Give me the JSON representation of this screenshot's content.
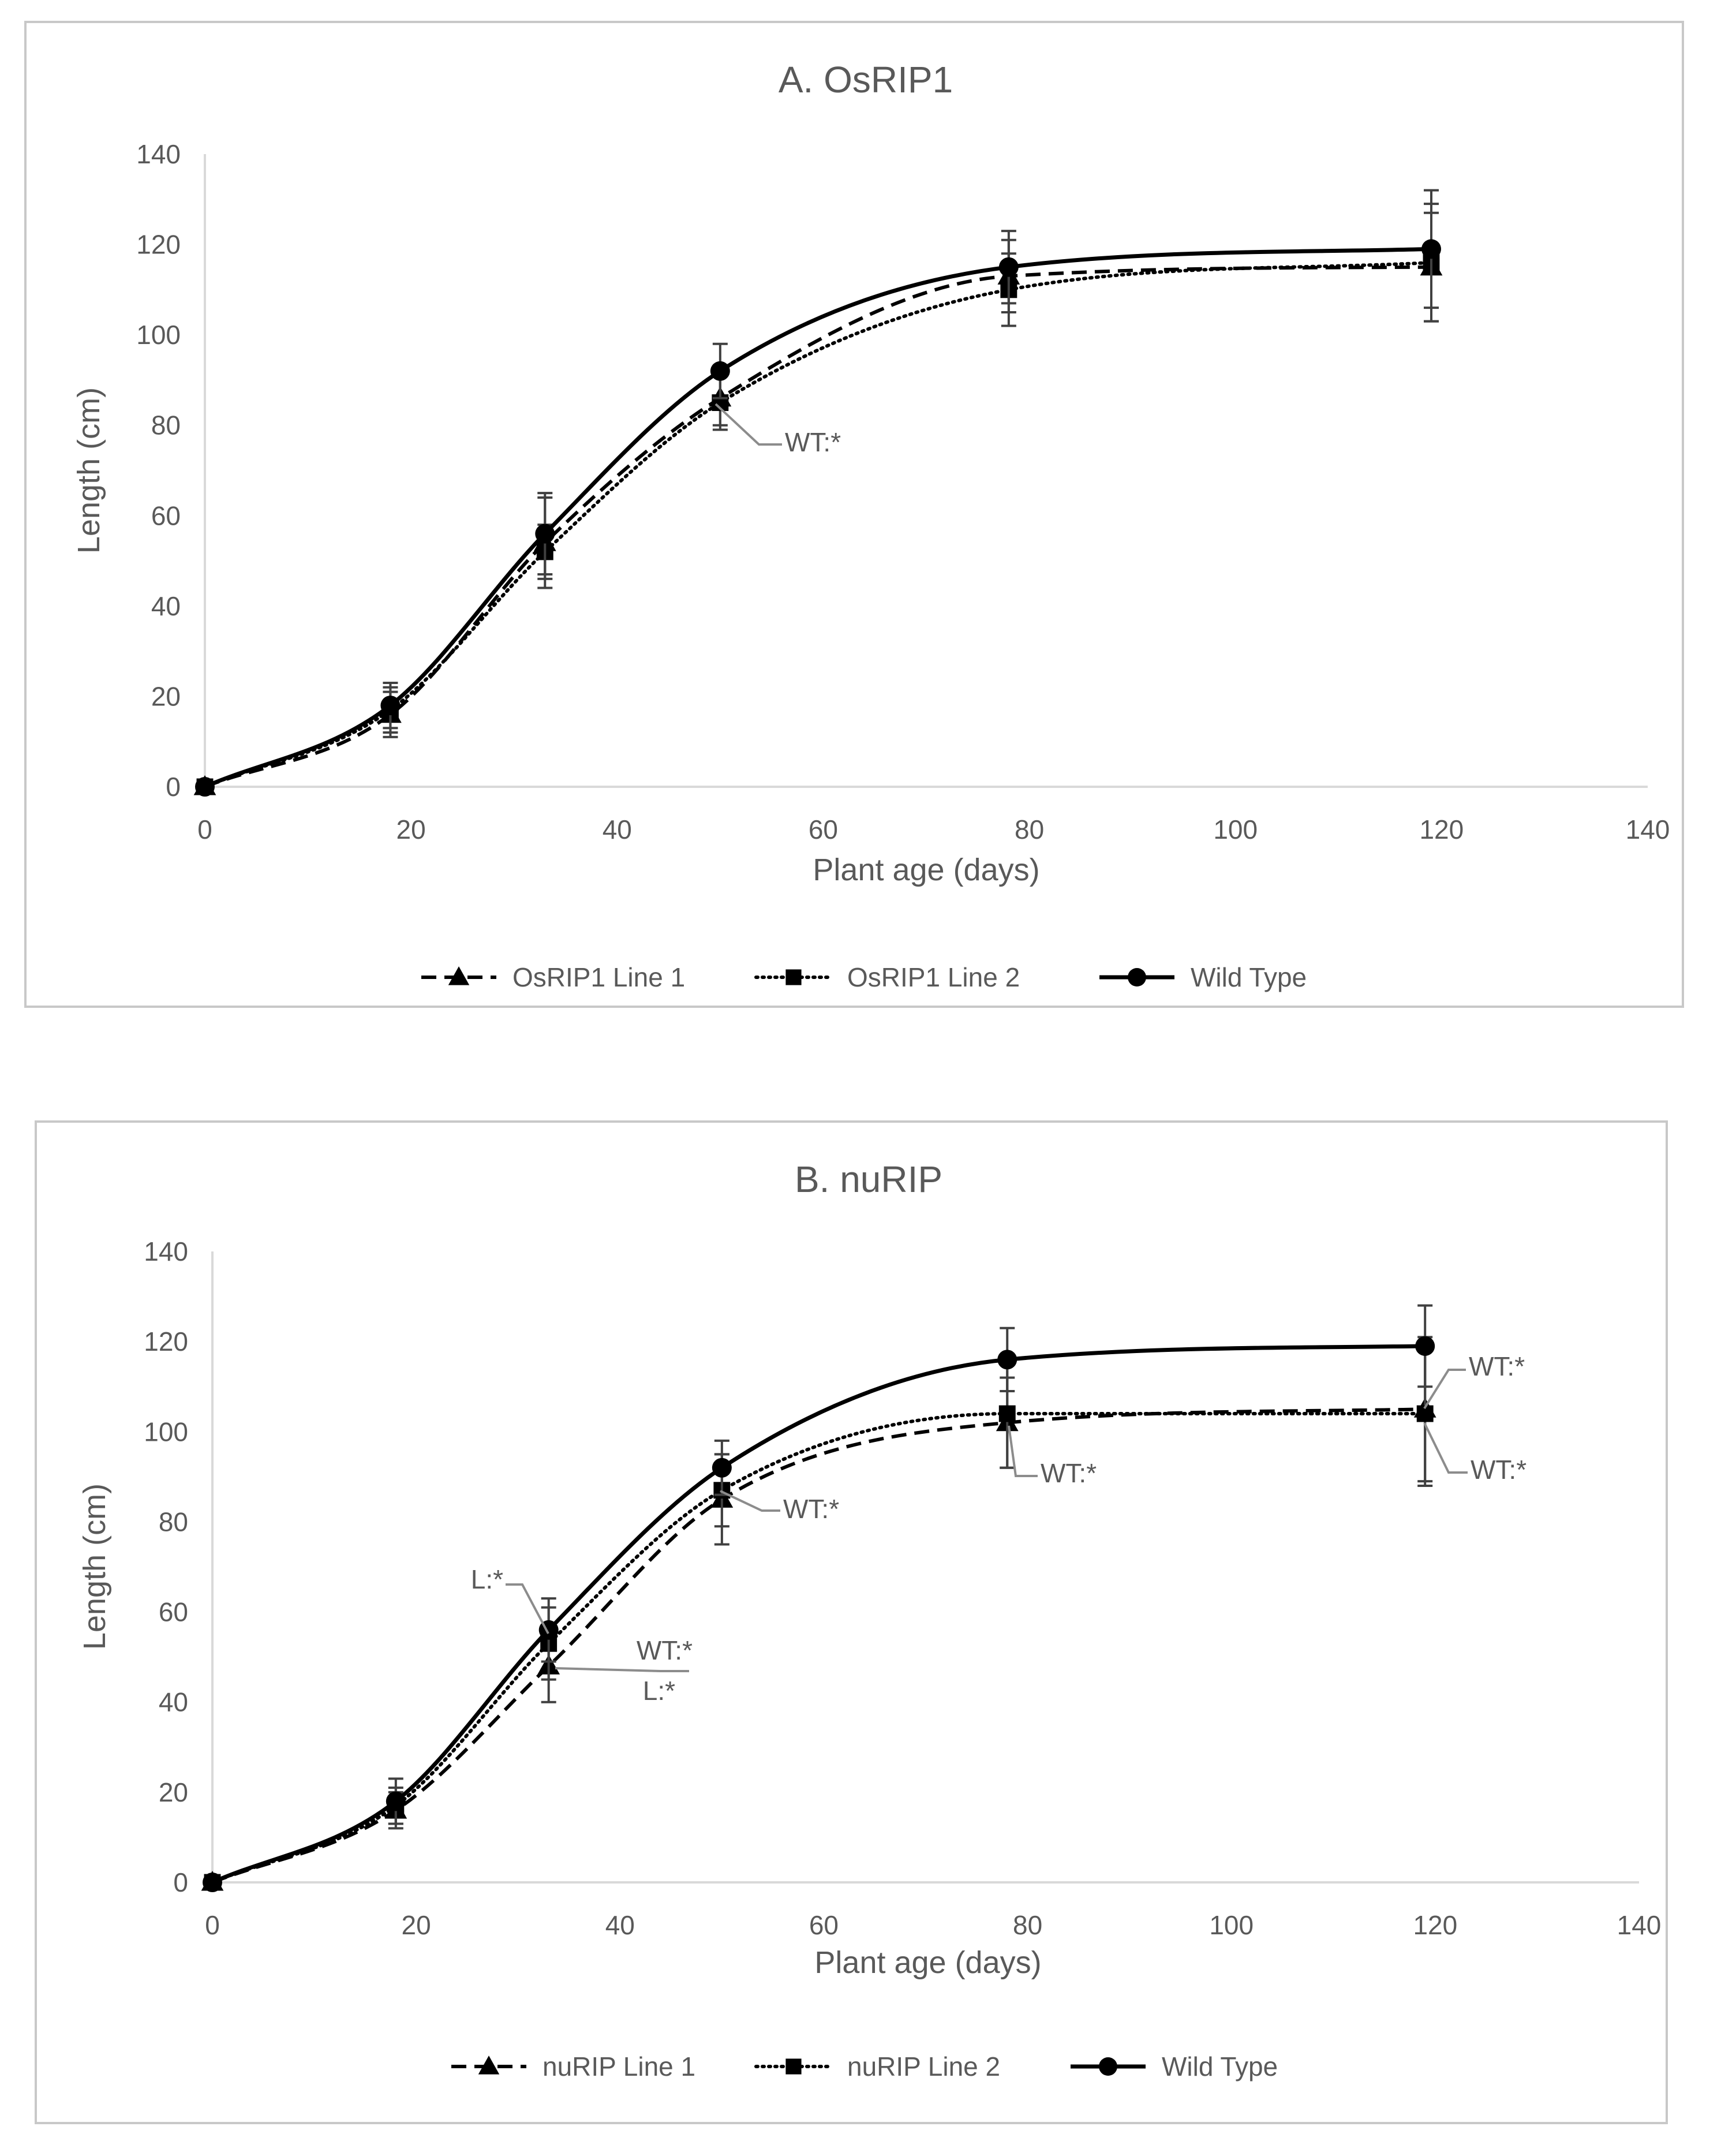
{
  "chart_data": [
    {
      "type": "line",
      "title": "A. OsRIP1",
      "xlabel": "Plant  age (days)",
      "ylabel": "Length (cm)",
      "xlim": [
        0,
        140
      ],
      "ylim": [
        0,
        140
      ],
      "xticks": [
        0,
        20,
        40,
        60,
        80,
        100,
        120,
        140
      ],
      "yticks": [
        0,
        20,
        40,
        60,
        80,
        100,
        120,
        140
      ],
      "grid": false,
      "legend_position": "bottom",
      "x": [
        0,
        18,
        33,
        50,
        78,
        119
      ],
      "series": [
        {
          "name": "OsRIP1  Line 1",
          "style": "dashed",
          "marker": "triangle",
          "values": [
            0,
            16,
            54,
            86,
            113,
            115
          ],
          "errors": [
            0,
            5,
            10,
            6,
            8,
            12
          ]
        },
        {
          "name": "OsRIP1  Line 2",
          "style": "dotted",
          "marker": "square",
          "values": [
            0,
            17,
            52,
            85,
            110,
            116
          ],
          "errors": [
            0,
            5,
            6,
            6,
            8,
            13
          ]
        },
        {
          "name": "Wild Type",
          "style": "solid",
          "marker": "circle",
          "values": [
            0,
            18,
            56,
            92,
            115,
            119
          ],
          "errors": [
            0,
            5,
            9,
            6,
            8,
            13
          ]
        }
      ],
      "annotations": [
        {
          "text": "WT:*",
          "x": 50,
          "y": 85
        }
      ]
    },
    {
      "type": "line",
      "title": "B. nuRIP",
      "xlabel": "Plant  age (days)",
      "ylabel": "Length (cm)",
      "xlim": [
        0,
        140
      ],
      "ylim": [
        0,
        140
      ],
      "xticks": [
        0,
        20,
        40,
        60,
        80,
        100,
        120,
        140
      ],
      "yticks": [
        0,
        20,
        40,
        60,
        80,
        100,
        120,
        140
      ],
      "grid": false,
      "legend_position": "bottom",
      "x": [
        0,
        18,
        33,
        50,
        78,
        119
      ],
      "series": [
        {
          "name": "nuRIP Line 1",
          "style": "dashed",
          "marker": "triangle",
          "values": [
            0,
            16,
            48,
            85,
            102,
            105
          ],
          "errors": [
            0,
            4,
            8,
            10,
            10,
            16
          ]
        },
        {
          "name": "nuRIP Line 2",
          "style": "dotted",
          "marker": "square",
          "values": [
            0,
            17,
            53,
            87,
            104,
            104
          ],
          "errors": [
            0,
            4,
            8,
            8,
            12,
            16
          ]
        },
        {
          "name": "Wild Type",
          "style": "solid",
          "marker": "circle",
          "values": [
            0,
            18,
            56,
            92,
            116,
            119
          ],
          "errors": [
            0,
            5,
            7,
            6,
            7,
            9
          ]
        }
      ],
      "annotations": [
        {
          "text": "L:*",
          "x": 33,
          "y": 56
        },
        {
          "text": "WT:*",
          "x": 33,
          "y": 48
        },
        {
          "text": "L:*",
          "x": 33,
          "y": 48
        },
        {
          "text": "WT:*",
          "x": 50,
          "y": 85
        },
        {
          "text": "WT:*",
          "x": 78,
          "y": 102
        },
        {
          "text": "WT:*",
          "x": 119,
          "y": 105
        },
        {
          "text": "WT:*",
          "x": 119,
          "y": 104
        }
      ]
    }
  ],
  "colors": {
    "line": "#000000",
    "axis": "#d9d9d9",
    "frame": "#c8c8c8",
    "text": "#595959",
    "error_bar": "#404040",
    "annotation_leader": "#8c8c8c"
  }
}
